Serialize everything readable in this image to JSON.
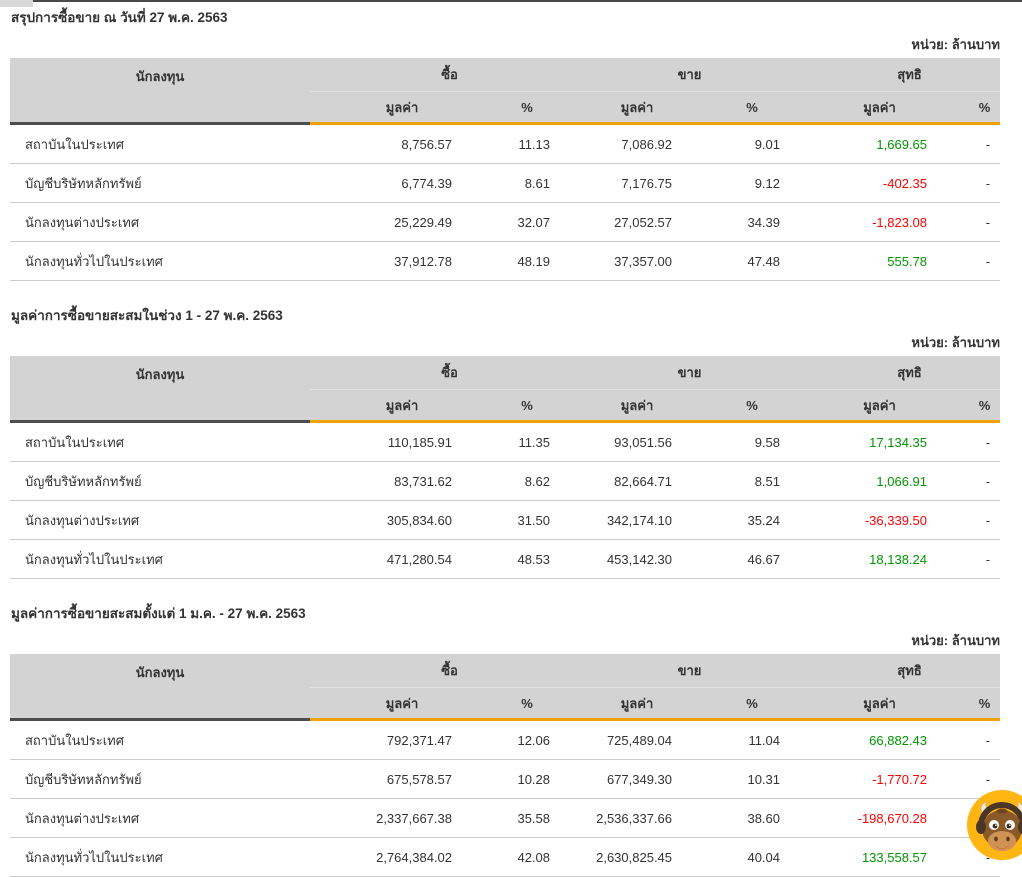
{
  "page": {
    "unit_label": "หน่วย: ล้านบาท",
    "colors": {
      "accent_orange": "#f0a202",
      "header_bg": "#d3d3d3",
      "investor_header_underline": "#4d4d4d",
      "positive_green": "#009600",
      "negative_red": "#ff0000",
      "mascot_yellow": "#ffb612"
    }
  },
  "table_headers": {
    "investor": "นักลงทุน",
    "buy": "ซื้อ",
    "sell": "ขาย",
    "net": "สุทธิ",
    "value": "มูลค่า",
    "percent": "%"
  },
  "sections": [
    {
      "title": "สรุปการซื้อขาย ณ วันที่ 27 พ.ค. 2563",
      "rows": [
        {
          "investor": "สถาบันในประเทศ",
          "buy_value": "8,756.57",
          "buy_pct": "11.13",
          "sell_value": "7,086.92",
          "sell_pct": "9.01",
          "net_value": "1,669.65",
          "net_sign": "positive",
          "net_pct": "-"
        },
        {
          "investor": "บัญชีบริษัทหลักทรัพย์",
          "buy_value": "6,774.39",
          "buy_pct": "8.61",
          "sell_value": "7,176.75",
          "sell_pct": "9.12",
          "net_value": "-402.35",
          "net_sign": "negative",
          "net_pct": "-"
        },
        {
          "investor": "นักลงทุนต่างประเทศ",
          "buy_value": "25,229.49",
          "buy_pct": "32.07",
          "sell_value": "27,052.57",
          "sell_pct": "34.39",
          "net_value": "-1,823.08",
          "net_sign": "negative",
          "net_pct": "-"
        },
        {
          "investor": "นักลงทุนทั่วไปในประเทศ",
          "buy_value": "37,912.78",
          "buy_pct": "48.19",
          "sell_value": "37,357.00",
          "sell_pct": "47.48",
          "net_value": "555.78",
          "net_sign": "positive",
          "net_pct": "-"
        }
      ]
    },
    {
      "title": "มูลค่าการซื้อขายสะสมในช่วง 1 - 27 พ.ค. 2563",
      "rows": [
        {
          "investor": "สถาบันในประเทศ",
          "buy_value": "110,185.91",
          "buy_pct": "11.35",
          "sell_value": "93,051.56",
          "sell_pct": "9.58",
          "net_value": "17,134.35",
          "net_sign": "positive",
          "net_pct": "-"
        },
        {
          "investor": "บัญชีบริษัทหลักทรัพย์",
          "buy_value": "83,731.62",
          "buy_pct": "8.62",
          "sell_value": "82,664.71",
          "sell_pct": "8.51",
          "net_value": "1,066.91",
          "net_sign": "positive",
          "net_pct": "-"
        },
        {
          "investor": "นักลงทุนต่างประเทศ",
          "buy_value": "305,834.60",
          "buy_pct": "31.50",
          "sell_value": "342,174.10",
          "sell_pct": "35.24",
          "net_value": "-36,339.50",
          "net_sign": "negative",
          "net_pct": "-"
        },
        {
          "investor": "นักลงทุนทั่วไปในประเทศ",
          "buy_value": "471,280.54",
          "buy_pct": "48.53",
          "sell_value": "453,142.30",
          "sell_pct": "46.67",
          "net_value": "18,138.24",
          "net_sign": "positive",
          "net_pct": "-"
        }
      ]
    },
    {
      "title": "มูลค่าการซื้อขายสะสมตั้งแต่ 1 ม.ค. - 27 พ.ค. 2563",
      "rows": [
        {
          "investor": "สถาบันในประเทศ",
          "buy_value": "792,371.47",
          "buy_pct": "12.06",
          "sell_value": "725,489.04",
          "sell_pct": "11.04",
          "net_value": "66,882.43",
          "net_sign": "positive",
          "net_pct": "-"
        },
        {
          "investor": "บัญชีบริษัทหลักทรัพย์",
          "buy_value": "675,578.57",
          "buy_pct": "10.28",
          "sell_value": "677,349.30",
          "sell_pct": "10.31",
          "net_value": "-1,770.72",
          "net_sign": "negative",
          "net_pct": "-"
        },
        {
          "investor": "นักลงทุนต่างประเทศ",
          "buy_value": "2,337,667.38",
          "buy_pct": "35.58",
          "sell_value": "2,536,337.66",
          "sell_pct": "38.60",
          "net_value": "-198,670.28",
          "net_sign": "negative",
          "net_pct": "-"
        },
        {
          "investor": "นักลงทุนทั่วไปในประเทศ",
          "buy_value": "2,764,384.02",
          "buy_pct": "42.08",
          "sell_value": "2,630,825.45",
          "sell_pct": "40.04",
          "net_value": "133,558.57",
          "net_sign": "positive",
          "net_pct": "-"
        }
      ]
    }
  ],
  "mascot": {
    "name": "bull-mascot-chat-widget"
  }
}
